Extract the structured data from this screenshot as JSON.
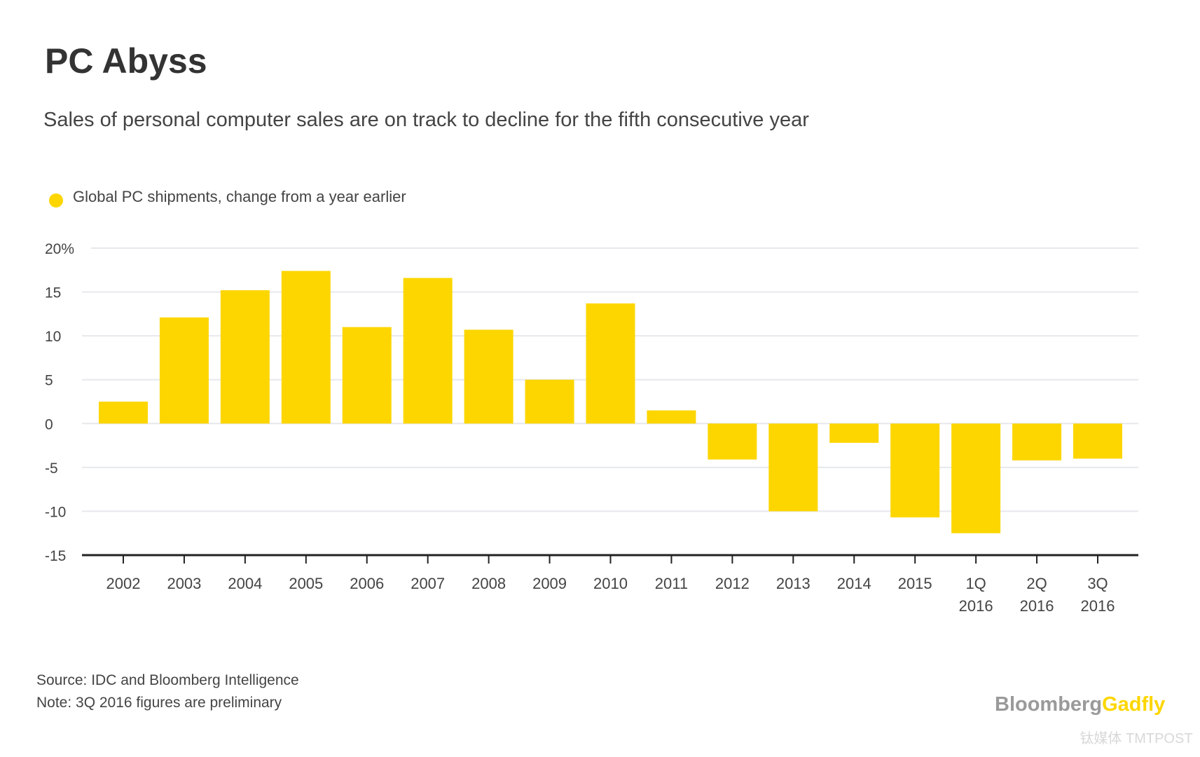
{
  "chart_data": {
    "type": "bar",
    "title": "PC Abyss",
    "subtitle": "Sales of personal computer sales are on track to decline for the fifth consecutive year",
    "legend": {
      "label": "Global PC shipments, change from a year earlier",
      "placement": "top-left"
    },
    "categories": [
      [
        "2002"
      ],
      [
        "2003"
      ],
      [
        "2004"
      ],
      [
        "2005"
      ],
      [
        "2006"
      ],
      [
        "2007"
      ],
      [
        "2008"
      ],
      [
        "2009"
      ],
      [
        "2010"
      ],
      [
        "2011"
      ],
      [
        "2012"
      ],
      [
        "2013"
      ],
      [
        "2014"
      ],
      [
        "2015"
      ],
      [
        "1Q",
        "2016"
      ],
      [
        "2Q",
        "2016"
      ],
      [
        "3Q",
        "2016"
      ]
    ],
    "values": [
      2.5,
      12.1,
      15.2,
      17.4,
      11.0,
      16.6,
      10.7,
      5.0,
      13.7,
      1.5,
      -4.1,
      -10.0,
      -2.2,
      -10.7,
      -12.5,
      -4.2,
      -4.0
    ],
    "ylim": [
      -15,
      20
    ],
    "yticks": [
      20,
      15,
      10,
      5,
      0,
      -5,
      -10,
      -15
    ],
    "ytick_labels": [
      "20%",
      "15",
      "10",
      "5",
      "0",
      "-5",
      "-10",
      "-15"
    ],
    "xlabel": "",
    "ylabel": "",
    "grid": true,
    "colors": {
      "bar": "#FDD600",
      "grid": "#e6e8ec",
      "axis": "#222222"
    }
  },
  "footer": {
    "source": "Source: IDC and Bloomberg Intelligence",
    "note": "Note: 3Q 2016 figures are preliminary"
  },
  "branding": {
    "logo_part1": "Bloomberg",
    "logo_part2": "Gadfly",
    "watermark": "钛媒体 TMTPOST"
  }
}
